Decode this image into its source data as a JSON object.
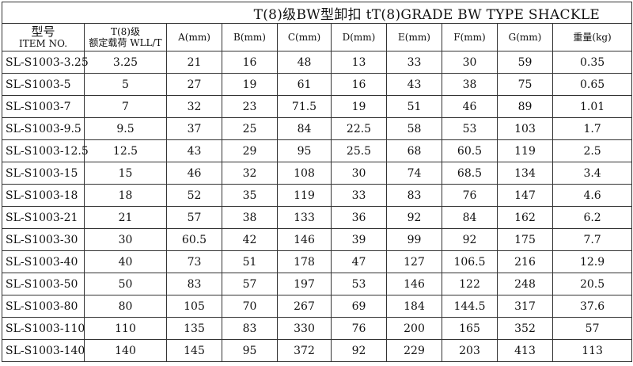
{
  "title": "T(8)级BW型卸扣    tT(8)GRADE BW TYPE SHACKLE",
  "headers": {
    "item_cn": "型号",
    "item_en": "ITEM NO.",
    "wll_top": "T(8)级",
    "wll_bottom": "额定载荷 WLL/T",
    "cols": [
      "A(mm)",
      "B(mm)",
      "C(mm)",
      "D(mm)",
      "E(mm)",
      "F(mm)",
      "G(mm)",
      "重量(kg)"
    ]
  },
  "rows": [
    [
      "SL-S1003-3.25",
      "3.25",
      "21",
      "16",
      "48",
      "13",
      "33",
      "30",
      "59",
      "0.35"
    ],
    [
      "SL-S1003-5",
      "5",
      "27",
      "19",
      "61",
      "16",
      "43",
      "38",
      "75",
      "0.65"
    ],
    [
      "SL-S1003-7",
      "7",
      "32",
      "23",
      "71.5",
      "19",
      "51",
      "46",
      "89",
      "1.01"
    ],
    [
      "SL-S1003-9.5",
      "9.5",
      "37",
      "25",
      "84",
      "22.5",
      "58",
      "53",
      "103",
      "1.7"
    ],
    [
      "SL-S1003-12.5",
      "12.5",
      "43",
      "29",
      "95",
      "25.5",
      "68",
      "60.5",
      "119",
      "2.5"
    ],
    [
      "SL-S1003-15",
      "15",
      "46",
      "32",
      "108",
      "30",
      "74",
      "68.5",
      "134",
      "3.4"
    ],
    [
      "SL-S1003-18",
      "18",
      "52",
      "35",
      "119",
      "33",
      "83",
      "76",
      "147",
      "4.6"
    ],
    [
      "SL-S1003-21",
      "21",
      "57",
      "38",
      "133",
      "36",
      "92",
      "84",
      "162",
      "6.2"
    ],
    [
      "SL-S1003-30",
      "30",
      "60.5",
      "42",
      "146",
      "39",
      "99",
      "92",
      "175",
      "7.7"
    ],
    [
      "SL-S1003-40",
      "40",
      "73",
      "51",
      "178",
      "47",
      "127",
      "106.5",
      "216",
      "12.9"
    ],
    [
      "SL-S1003-50",
      "50",
      "83",
      "57",
      "197",
      "53",
      "146",
      "122",
      "248",
      "20.5"
    ],
    [
      "SL-S1003-80",
      "80",
      "105",
      "70",
      "267",
      "69",
      "184",
      "144.5",
      "317",
      "37.6"
    ],
    [
      "SL-S1003-110",
      "110",
      "135",
      "83",
      "330",
      "76",
      "200",
      "165",
      "352",
      "57"
    ],
    [
      "SL-S1003-140",
      "140",
      "145",
      "95",
      "372",
      "92",
      "229",
      "203",
      "413",
      "113"
    ]
  ]
}
